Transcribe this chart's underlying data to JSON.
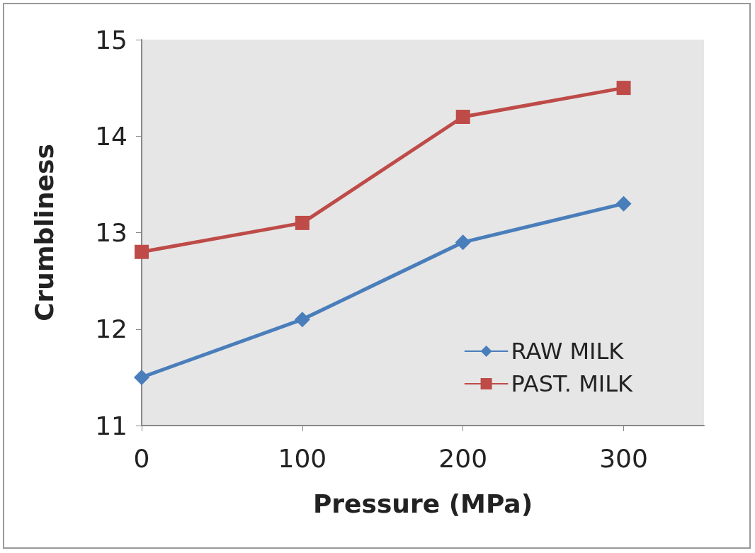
{
  "chart_data": {
    "type": "line",
    "xlabel": "Pressure (MPa)",
    "ylabel": "Crumbliness",
    "x": [
      0,
      100,
      200,
      300
    ],
    "series": [
      {
        "name": "RAW MILK",
        "color": "#4a7ebb",
        "marker": "diamond",
        "values": [
          11.5,
          12.1,
          12.9,
          13.3
        ]
      },
      {
        "name": "PAST. MILK",
        "color": "#be4b48",
        "marker": "square",
        "values": [
          12.8,
          13.1,
          14.2,
          14.5
        ]
      }
    ],
    "xlim": [
      0,
      350
    ],
    "xticks": [
      0,
      100,
      200,
      300
    ],
    "ylim": [
      11,
      15
    ],
    "yticks": [
      11,
      12,
      13,
      14,
      15
    ],
    "grid": false,
    "legend": "bottom right",
    "line_style": "solid"
  }
}
